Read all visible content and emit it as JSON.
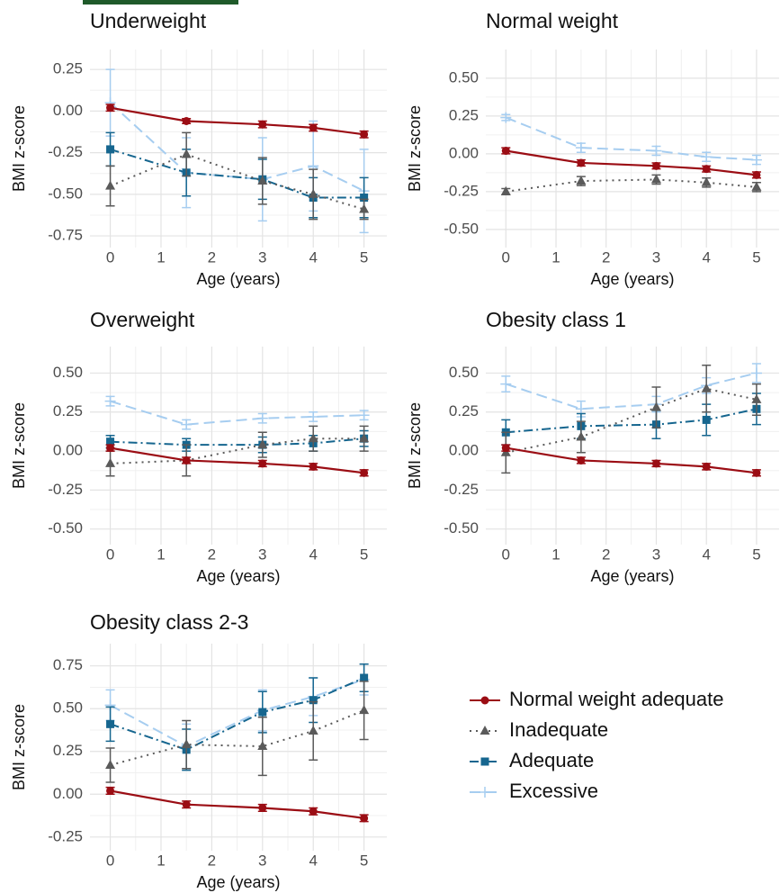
{
  "legend": {
    "series": [
      {
        "name": "Normal weight adequate",
        "color": "#9b0d14",
        "marker": "circle",
        "dash": "solid"
      },
      {
        "name": "Inadequate",
        "color": "#5a5a5a",
        "marker": "triangle",
        "dash": "dotted"
      },
      {
        "name": "Adequate",
        "color": "#16668f",
        "marker": "square",
        "dash": "dashdot"
      },
      {
        "name": "Excessive",
        "color": "#a6cdf0",
        "marker": "plus",
        "dash": "dashed"
      }
    ]
  },
  "chart_data": [
    {
      "type": "line",
      "title": "Underweight",
      "x_label": "Age (years)",
      "y_label": "BMI z-score",
      "x": [
        0,
        1.5,
        3,
        4,
        5
      ],
      "xlim": [
        -0.4,
        5.45
      ],
      "xticks": [
        0,
        1,
        2,
        3,
        4,
        5
      ],
      "ylim": [
        -0.82,
        0.37
      ],
      "yticks": [
        0.25,
        {
          "value": 0,
          "label": "0.00"
        },
        -0.25,
        {
          "value": -0.5,
          "label": "-0.50"
        },
        -0.75
      ],
      "grid": true,
      "series": [
        {
          "values": [
            0.02,
            -0.06,
            -0.08,
            -0.1,
            -0.14
          ],
          "errors": [
            0.02,
            0.015,
            0.02,
            0.02,
            0.02
          ]
        },
        {
          "values": [
            -0.45,
            -0.26,
            -0.42,
            -0.5,
            -0.59
          ],
          "errors": [
            0.12,
            0.13,
            0.14,
            0.15,
            0.06
          ]
        },
        {
          "values": [
            -0.23,
            -0.37,
            -0.41,
            -0.52,
            -0.52
          ],
          "errors": [
            0.1,
            0.14,
            0.12,
            0.12,
            0.12
          ]
        },
        {
          "values": [
            0.05,
            -0.37,
            -0.41,
            -0.33,
            -0.48
          ],
          "errors": [
            0.2,
            0.21,
            0.25,
            0.27,
            0.25
          ]
        }
      ]
    },
    {
      "type": "line",
      "title": "Normal weight",
      "x_label": "Age (years)",
      "y_label": "BMI z-score",
      "x": [
        0,
        1.5,
        3,
        4,
        5
      ],
      "xlim": [
        -0.4,
        5.45
      ],
      "xticks": [
        0,
        1,
        2,
        3,
        4,
        5
      ],
      "ylim": [
        -0.62,
        0.69
      ],
      "yticks": [
        {
          "value": 0.5,
          "label": "0.50"
        },
        0.25,
        {
          "value": 0,
          "label": "0.00"
        },
        -0.25,
        {
          "value": -0.5,
          "label": "-0.50"
        }
      ],
      "grid": true,
      "series": [
        {
          "values": [
            0.02,
            -0.06,
            -0.08,
            -0.1,
            -0.14
          ],
          "errors": [
            0.02,
            0.02,
            0.02,
            0.02,
            0.02
          ]
        },
        {
          "values": [
            -0.25,
            -0.18,
            -0.17,
            -0.19,
            -0.22
          ],
          "errors": [
            0.02,
            0.03,
            0.03,
            0.03,
            0.03
          ]
        },
        {
          "values": [
            null,
            null,
            null,
            null,
            null
          ],
          "errors": [
            null,
            null,
            null,
            null,
            null
          ]
        },
        {
          "values": [
            0.24,
            0.04,
            0.02,
            -0.02,
            -0.04
          ],
          "errors": [
            0.02,
            0.03,
            0.03,
            0.03,
            0.03
          ]
        }
      ]
    },
    {
      "type": "line",
      "title": "Overweight",
      "x_label": "Age (years)",
      "y_label": "BMI z-score",
      "x": [
        0,
        1.5,
        3,
        4,
        5
      ],
      "xlim": [
        -0.4,
        5.45
      ],
      "xticks": [
        0,
        1,
        2,
        3,
        4,
        5
      ],
      "ylim": [
        -0.6,
        0.67
      ],
      "yticks": [
        {
          "value": 0.5,
          "label": "0.50"
        },
        0.25,
        {
          "value": 0,
          "label": "0.00"
        },
        -0.25,
        {
          "value": -0.5,
          "label": "-0.50"
        }
      ],
      "grid": true,
      "series": [
        {
          "values": [
            0.02,
            -0.06,
            -0.08,
            -0.1,
            -0.14
          ],
          "errors": [
            0.02,
            0.02,
            0.02,
            0.02,
            0.02
          ]
        },
        {
          "values": [
            -0.08,
            -0.06,
            0.04,
            0.08,
            0.08
          ],
          "errors": [
            0.08,
            0.1,
            0.08,
            0.08,
            0.08
          ]
        },
        {
          "values": [
            0.06,
            0.04,
            0.04,
            0.05,
            0.08
          ],
          "errors": [
            0.04,
            0.04,
            0.05,
            0.05,
            0.05
          ]
        },
        {
          "values": [
            0.32,
            0.17,
            0.21,
            0.22,
            0.23
          ],
          "errors": [
            0.03,
            0.03,
            0.03,
            0.03,
            0.03
          ]
        }
      ]
    },
    {
      "type": "line",
      "title": "Obesity class 1",
      "x_label": "Age (years)",
      "y_label": "BMI z-score",
      "x": [
        0,
        1.5,
        3,
        4,
        5
      ],
      "xlim": [
        -0.4,
        5.45
      ],
      "xticks": [
        0,
        1,
        2,
        3,
        4,
        5
      ],
      "ylim": [
        -0.6,
        0.67
      ],
      "yticks": [
        {
          "value": 0.5,
          "label": "0.50"
        },
        0.25,
        {
          "value": 0,
          "label": "0.00"
        },
        -0.25,
        {
          "value": -0.5,
          "label": "-0.50"
        }
      ],
      "grid": true,
      "series": [
        {
          "values": [
            0.02,
            -0.06,
            -0.08,
            -0.1,
            -0.14
          ],
          "errors": [
            0.02,
            0.02,
            0.02,
            0.02,
            0.02
          ]
        },
        {
          "values": [
            -0.01,
            0.09,
            0.28,
            0.4,
            0.33
          ],
          "errors": [
            0.13,
            0.1,
            0.13,
            0.15,
            0.1
          ]
        },
        {
          "values": [
            0.12,
            0.16,
            0.17,
            0.2,
            0.27
          ],
          "errors": [
            0.08,
            0.08,
            0.09,
            0.1,
            0.1
          ]
        },
        {
          "values": [
            0.43,
            0.27,
            0.3,
            0.42,
            0.5
          ],
          "errors": [
            0.05,
            0.05,
            0.05,
            0.05,
            0.06
          ]
        }
      ]
    },
    {
      "type": "line",
      "title": "Obesity class 2-3",
      "x_label": "Age (years)",
      "y_label": "BMI z-score",
      "x": [
        0,
        1.5,
        3,
        4,
        5
      ],
      "xlim": [
        -0.4,
        5.45
      ],
      "xticks": [
        0,
        1,
        2,
        3,
        4,
        5
      ],
      "ylim": [
        -0.33,
        0.88
      ],
      "yticks": [
        0.75,
        {
          "value": 0.5,
          "label": "0.50"
        },
        0.25,
        {
          "value": 0,
          "label": "0.00"
        },
        -0.25
      ],
      "grid": true,
      "series": [
        {
          "values": [
            0.02,
            -0.06,
            -0.08,
            -0.1,
            -0.14
          ],
          "errors": [
            0.02,
            0.02,
            0.02,
            0.02,
            0.02
          ]
        },
        {
          "values": [
            0.17,
            0.29,
            0.28,
            0.37,
            0.49
          ],
          "errors": [
            0.1,
            0.14,
            0.17,
            0.17,
            0.17
          ]
        },
        {
          "values": [
            0.41,
            0.26,
            0.48,
            0.55,
            0.68
          ],
          "errors": [
            0.1,
            0.12,
            0.12,
            0.13,
            0.08
          ]
        },
        {
          "values": [
            0.52,
            0.28,
            0.49,
            0.57,
            0.67
          ],
          "errors": [
            0.09,
            0.13,
            0.12,
            0.11,
            0.09
          ]
        }
      ]
    }
  ]
}
